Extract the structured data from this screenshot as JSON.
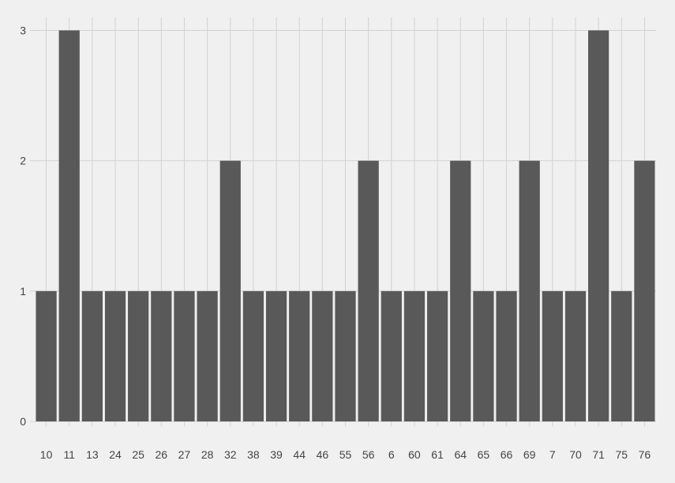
{
  "chart_data": {
    "type": "bar",
    "title": "",
    "xlabel": "",
    "ylabel": "",
    "categories": [
      "10",
      "11",
      "13",
      "24",
      "25",
      "26",
      "27",
      "28",
      "32",
      "38",
      "39",
      "44",
      "46",
      "55",
      "56",
      "6",
      "60",
      "61",
      "64",
      "65",
      "66",
      "69",
      "7",
      "70",
      "71",
      "75",
      "76"
    ],
    "values": [
      1,
      3,
      1,
      1,
      1,
      1,
      1,
      1,
      2,
      1,
      1,
      1,
      1,
      1,
      2,
      1,
      1,
      1,
      2,
      1,
      1,
      2,
      1,
      1,
      3,
      1,
      2
    ],
    "ylim": [
      0,
      3.1
    ],
    "yticks": [
      0,
      1,
      2,
      3
    ],
    "grid": true,
    "colors": {
      "background": "#f0f0f0",
      "bar": "#595959",
      "grid": "#d2d2d2",
      "text": "#444444"
    }
  }
}
